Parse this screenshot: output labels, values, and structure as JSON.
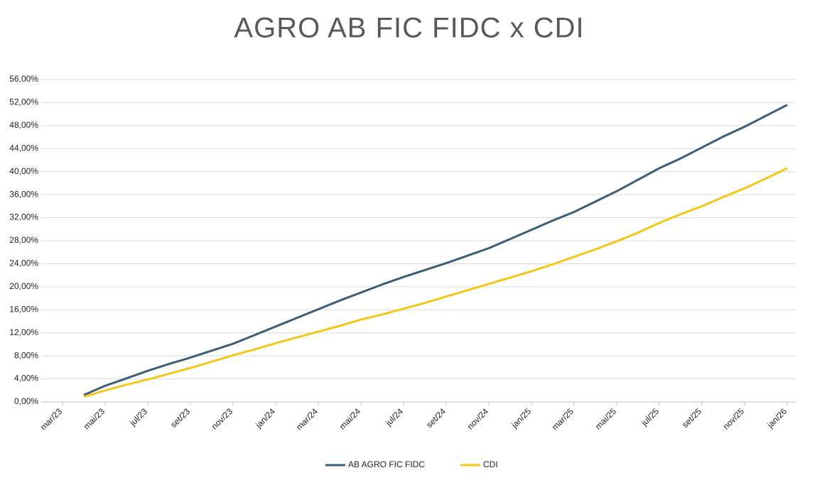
{
  "chart_data": {
    "type": "line",
    "title": "AGRO AB FIC FIDC x CDI",
    "categories": [
      "mar/23",
      null,
      "mai/23",
      null,
      "jul/23",
      null,
      "set/23",
      null,
      "nov/23",
      null,
      "jan/24",
      null,
      "mar/24",
      null,
      "mai/24",
      null,
      "jul/24",
      null,
      "set/24",
      null,
      "nov/24",
      null,
      "jan/25",
      null,
      "mar/25",
      null,
      "mai/25",
      null,
      "jul/25",
      null,
      "set/25",
      null,
      "nov/25",
      null,
      "jan/26"
    ],
    "series": [
      {
        "name": "AB AGRO FIC FIDC",
        "color": "#3b5e78",
        "values": [
          null,
          1.2,
          2.8,
          4.1,
          5.4,
          6.6,
          7.7,
          8.9,
          10.1,
          11.6,
          13.1,
          14.6,
          16.1,
          17.6,
          19.0,
          20.4,
          21.7,
          22.9,
          24.1,
          25.4,
          26.7,
          28.3,
          29.9,
          31.5,
          33.0,
          34.8,
          36.6,
          38.6,
          40.6,
          42.3,
          44.2,
          46.1,
          47.8,
          49.7,
          51.6
        ]
      },
      {
        "name": "CDI",
        "color": "#f5c518",
        "values": [
          null,
          0.9,
          2.0,
          3.0,
          3.9,
          4.9,
          5.9,
          7.0,
          8.1,
          9.1,
          10.2,
          11.2,
          12.2,
          13.2,
          14.3,
          15.2,
          16.2,
          17.2,
          18.3,
          19.4,
          20.5,
          21.6,
          22.7,
          23.9,
          25.2,
          26.5,
          27.9,
          29.4,
          31.1,
          32.6,
          34.0,
          35.6,
          37.1,
          38.8,
          40.6
        ]
      }
    ],
    "ylim": [
      0,
      56
    ],
    "yticks": [
      {
        "value": 0,
        "label": "0,00%"
      },
      {
        "value": 4,
        "label": "4,00%"
      },
      {
        "value": 8,
        "label": "8,00%"
      },
      {
        "value": 12,
        "label": "12,00%"
      },
      {
        "value": 16,
        "label": "16,00%"
      },
      {
        "value": 20,
        "label": "20,00%"
      },
      {
        "value": 24,
        "label": "24,00%"
      },
      {
        "value": 28,
        "label": "28,00%"
      },
      {
        "value": 32,
        "label": "32,00%"
      },
      {
        "value": 36,
        "label": "36,00%"
      },
      {
        "value": 40,
        "label": "40,00%"
      },
      {
        "value": 44,
        "label": "44,00%"
      },
      {
        "value": 48,
        "label": "48,00%"
      },
      {
        "value": 52,
        "label": "52,00%"
      },
      {
        "value": 56,
        "label": "56,00%"
      }
    ],
    "grid": true,
    "legend": "bottom"
  }
}
